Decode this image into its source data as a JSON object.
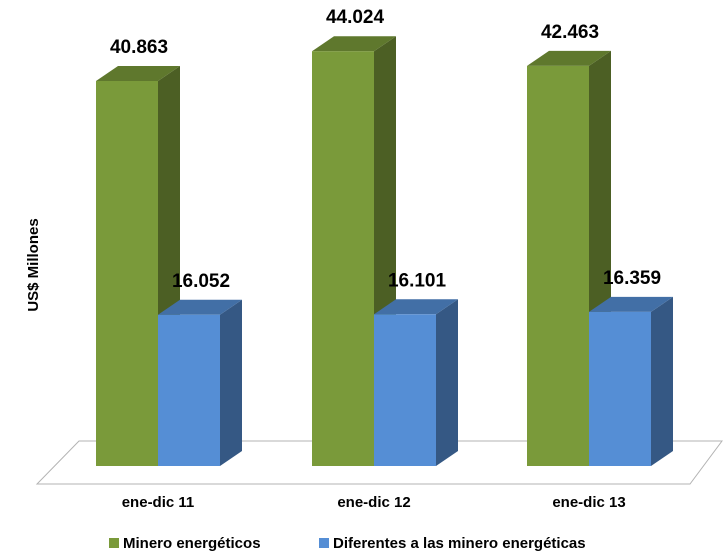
{
  "chart_data": {
    "type": "bar",
    "title": "",
    "xlabel": "",
    "ylabel": "US$ Millones",
    "categories": [
      "ene-dic 11",
      "ene-dic 12",
      "ene-dic 13"
    ],
    "series": [
      {
        "name": "Minero energéticos",
        "values": [
          40863,
          44024,
          42463
        ],
        "labels": [
          "40.863",
          "44.024",
          "42.463"
        ],
        "color": "#7A9A3A"
      },
      {
        "name": "Diferentes a las minero energéticas",
        "values": [
          16052,
          16101,
          16359
        ],
        "labels": [
          "16.052",
          "16.101",
          "16.359"
        ],
        "color": "#558ED5"
      }
    ],
    "ylim": [
      0,
      48000
    ],
    "grid": false,
    "legend": "bottom",
    "style": "3d-column"
  }
}
